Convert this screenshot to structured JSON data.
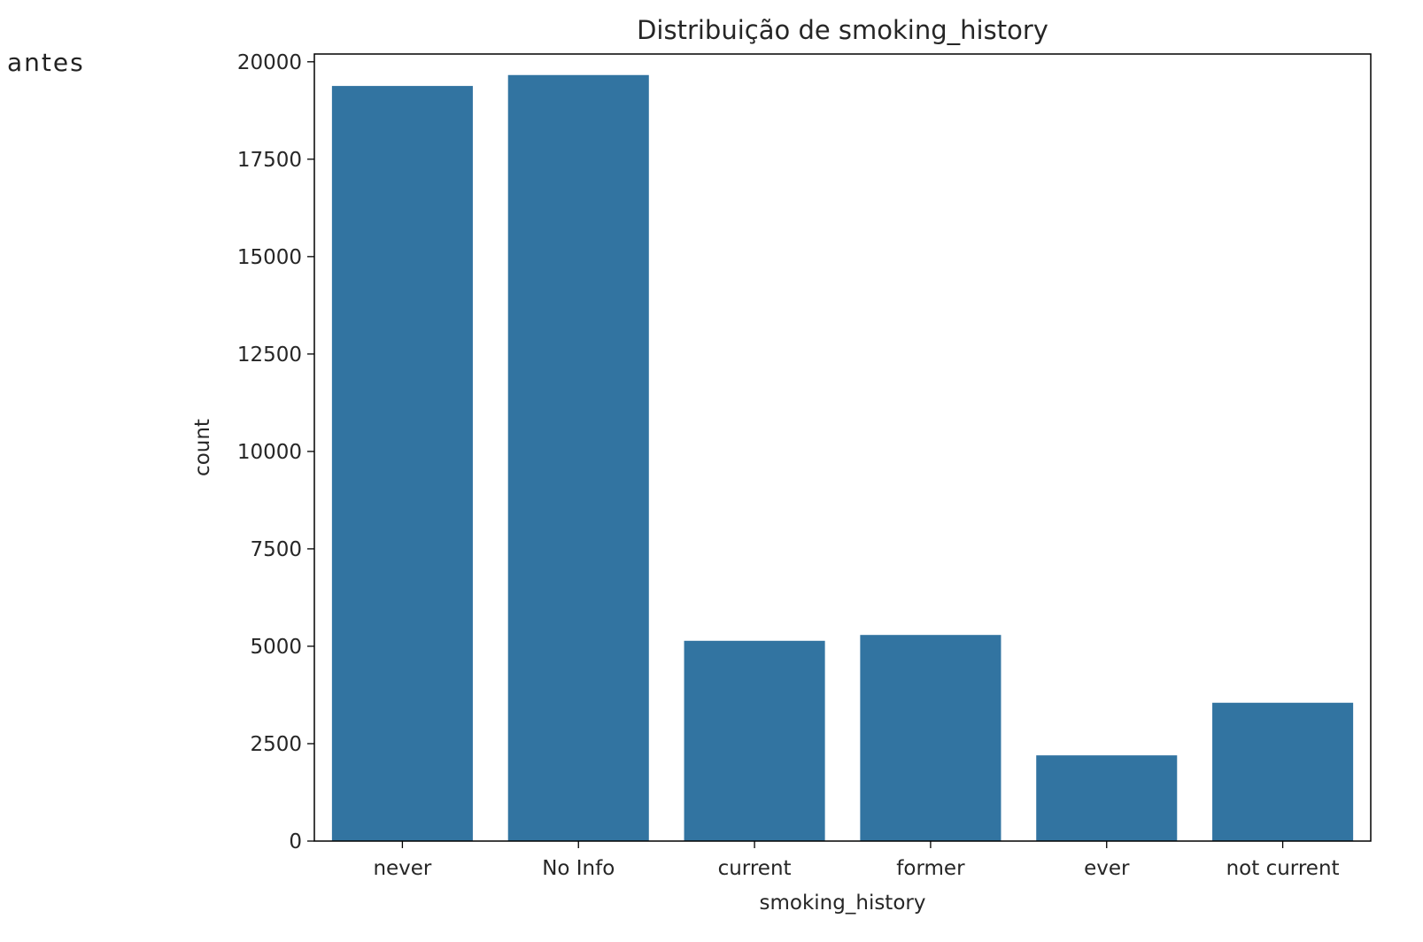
{
  "side_label": "antes",
  "chart_data": {
    "type": "bar",
    "title": "Distribuição de smoking_history",
    "xlabel": "smoking_history",
    "ylabel": "count",
    "categories": [
      "never",
      "No Info",
      "current",
      "former",
      "ever",
      "not current"
    ],
    "values": [
      19380,
      19660,
      5140,
      5290,
      2200,
      3550
    ],
    "ylim": [
      0,
      20200
    ],
    "yticks": [
      0,
      2500,
      5000,
      7500,
      10000,
      12500,
      15000,
      17500,
      20000
    ],
    "bar_color": "#3274a1",
    "grid": false,
    "legend": "none"
  }
}
